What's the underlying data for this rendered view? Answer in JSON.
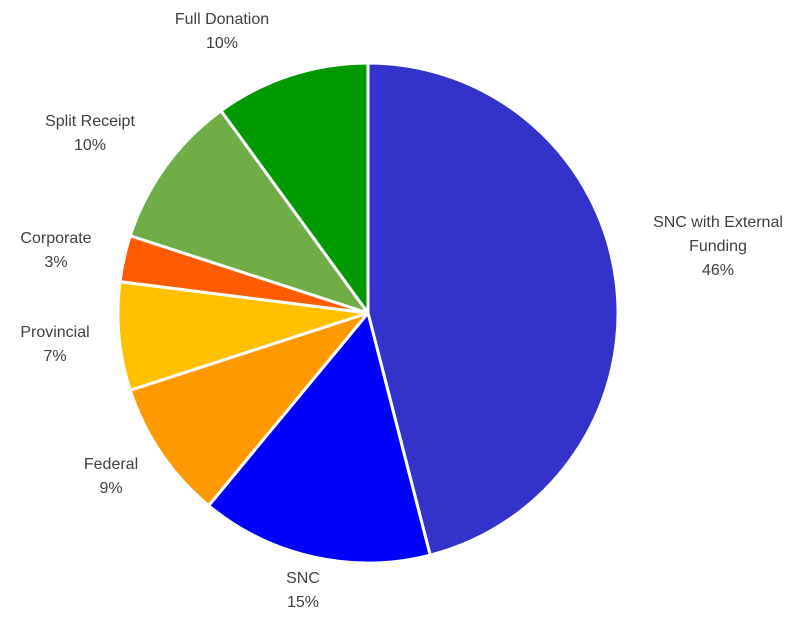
{
  "chart_data": {
    "type": "pie",
    "title": "",
    "start_angle_deg": 0,
    "direction": "clockwise",
    "slices": [
      {
        "label_lines": [
          "SNC with External",
          "Funding"
        ],
        "percent_label": "46%",
        "value": 46,
        "color": "#3333CC"
      },
      {
        "label_lines": [
          "SNC"
        ],
        "percent_label": "15%",
        "value": 15,
        "color": "#0000FF"
      },
      {
        "label_lines": [
          "Federal"
        ],
        "percent_label": "9%",
        "value": 9,
        "color": "#FF9900"
      },
      {
        "label_lines": [
          "Provincial"
        ],
        "percent_label": "7%",
        "value": 7,
        "color": "#FFC000"
      },
      {
        "label_lines": [
          "Corporate"
        ],
        "percent_label": "3%",
        "value": 3,
        "color": "#FF5B00"
      },
      {
        "label_lines": [
          "Split Receipt"
        ],
        "percent_label": "10%",
        "value": 10,
        "color": "#70AD47"
      },
      {
        "label_lines": [
          "Full Donation"
        ],
        "percent_label": "10%",
        "value": 10,
        "color": "#009900"
      }
    ],
    "legend": "none",
    "slice_border_color": "#FFFFFF"
  }
}
